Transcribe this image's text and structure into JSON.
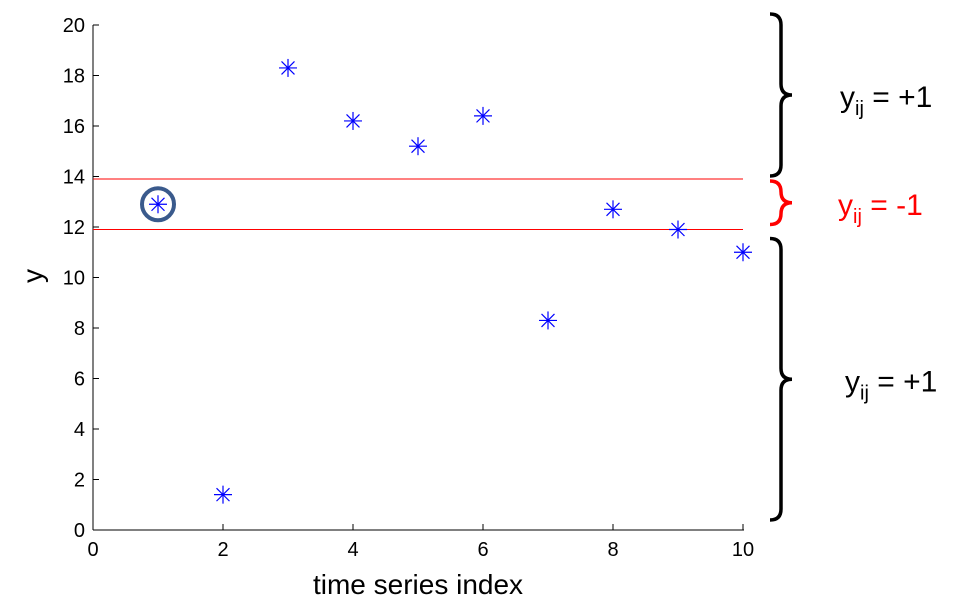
{
  "chart_data": {
    "type": "scatter",
    "xlabel": "time series index",
    "ylabel": "y",
    "xlim": [
      0,
      10
    ],
    "ylim": [
      0,
      20
    ],
    "x_ticks": [
      "0",
      "2",
      "4",
      "6",
      "8",
      "10"
    ],
    "y_ticks": [
      "0",
      "2",
      "4",
      "6",
      "8",
      "10",
      "12",
      "14",
      "16",
      "18",
      "20"
    ],
    "grid": false,
    "x": [
      1,
      2,
      3,
      4,
      5,
      6,
      7,
      8,
      9,
      10
    ],
    "y": [
      12.9,
      1.4,
      18.3,
      16.2,
      15.2,
      16.4,
      8.3,
      12.7,
      11.9,
      11.0
    ],
    "marker": "asterisk",
    "marker_color": "#0000ff",
    "highlighted_point": {
      "x": 1,
      "y": 12.9,
      "color": "#3a5a8c"
    },
    "threshold_lines": [
      {
        "y": 13.9,
        "color": "#ff0000"
      },
      {
        "y": 11.9,
        "color": "#ff0000"
      }
    ],
    "annotations": [
      {
        "base": "y",
        "subscript": "ij",
        "rest": " = +1",
        "color": "#000000",
        "y_range": [
          13.9,
          20
        ]
      },
      {
        "base": "y",
        "subscript": "ij",
        "rest": " = -1",
        "color": "#ff0000",
        "y_range": [
          11.9,
          13.9
        ]
      },
      {
        "base": "y",
        "subscript": "ij",
        "rest": " = +1",
        "color": "#000000",
        "y_range": [
          0,
          11.9
        ]
      }
    ]
  }
}
